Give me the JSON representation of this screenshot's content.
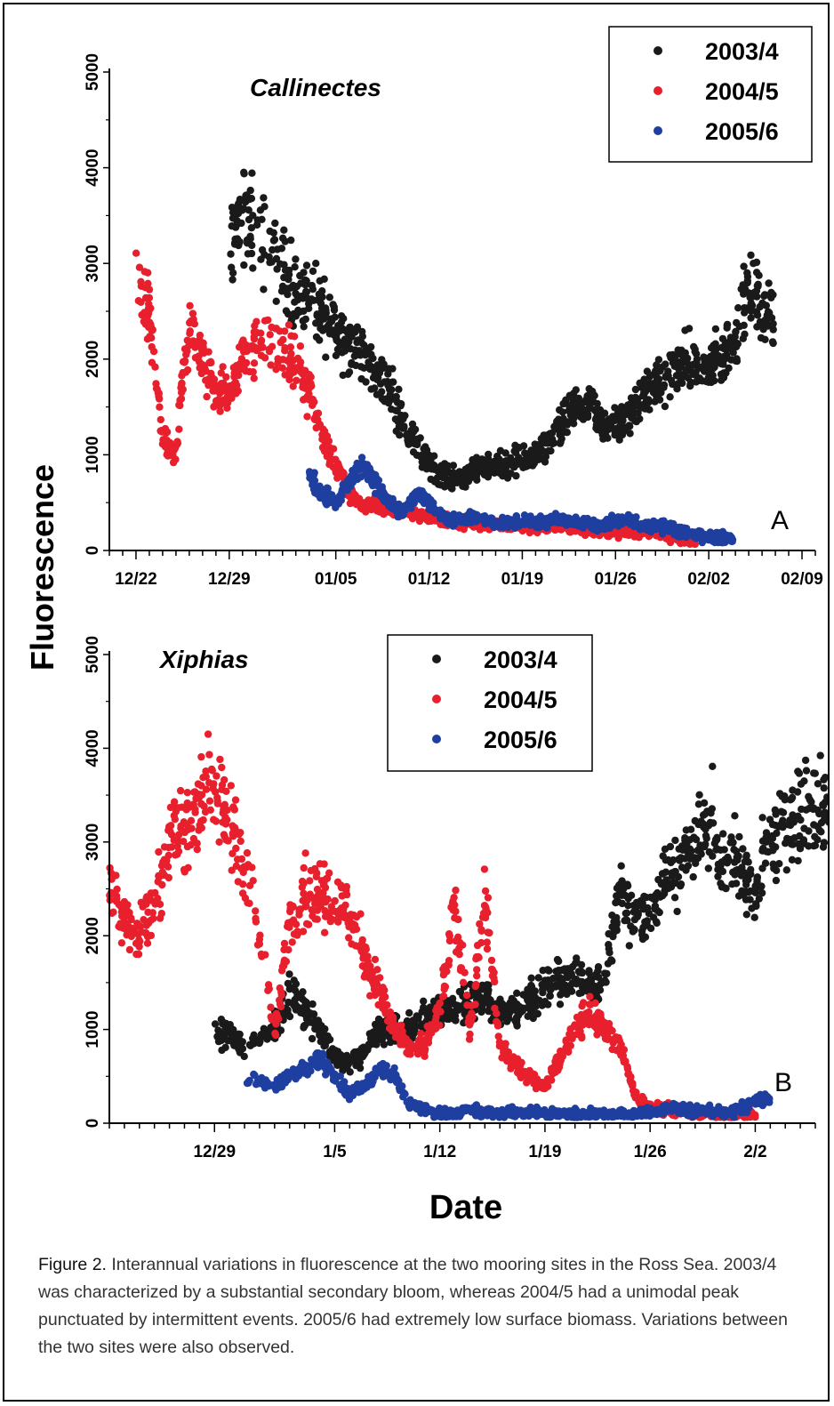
{
  "y_axis_label": "Fluorescence",
  "x_axis_label": "Date",
  "caption": {
    "label": "Figure 2.",
    "text": "  Interannual variations in fluorescence at the two mooring sites in the Ross Sea.  2003/4 was characterized by a substantial secondary bloom, whereas 2004/5 had a unimodal peak punctuated by intermittent events.  2005/6 had extremely low surface biomass. Variations between the two sites were also observed."
  },
  "colors": {
    "2003/4": "#1a1a1a",
    "2004/5": "#e8202e",
    "2005/6": "#1f3fa0"
  },
  "chart_data": [
    {
      "type": "scatter",
      "title": "Callinectes",
      "panel": "A",
      "xlabel": "Date",
      "ylabel": "Fluorescence",
      "ylim": [
        0,
        5000
      ],
      "yticks": [
        0,
        1000,
        2000,
        3000,
        4000,
        5000
      ],
      "xlim": [
        "12/20",
        "02/11"
      ],
      "xticks": [
        "12/22",
        "12/29",
        "01/05",
        "01/12",
        "01/19",
        "01/26",
        "02/02",
        "02/09"
      ],
      "legend": "top-right",
      "series": [
        {
          "name": "2003/4",
          "x": [
            "12/29",
            "12/30",
            "12/31",
            "01/01",
            "01/02",
            "01/03",
            "01/04",
            "01/05",
            "01/06",
            "01/07",
            "01/08",
            "01/09",
            "01/10",
            "01/11",
            "01/12",
            "01/13",
            "01/14",
            "01/15",
            "01/16",
            "01/17",
            "01/18",
            "01/19",
            "01/20",
            "01/21",
            "01/22",
            "01/23",
            "01/24",
            "01/25",
            "01/26",
            "01/27",
            "01/28",
            "01/29",
            "01/30",
            "01/31",
            "02/01",
            "02/02",
            "02/03",
            "02/04",
            "02/05",
            "02/06"
          ],
          "y": [
            3000,
            3600,
            3300,
            3000,
            2700,
            2600,
            2500,
            2300,
            2200,
            2000,
            1900,
            1700,
            1400,
            1100,
            900,
            800,
            750,
            800,
            850,
            900,
            900,
            950,
            1000,
            1100,
            1300,
            1500,
            1500,
            1300,
            1300,
            1400,
            1600,
            1700,
            1800,
            2000,
            1900,
            1900,
            2000,
            2300,
            2700,
            2500
          ]
        },
        {
          "name": "2004/5",
          "x": [
            "12/22",
            "12/23",
            "12/24",
            "12/25",
            "12/26",
            "12/27",
            "12/28",
            "12/29",
            "12/30",
            "12/31",
            "01/01",
            "01/02",
            "01/03",
            "01/04",
            "01/05",
            "01/06",
            "01/07",
            "01/08",
            "01/09",
            "01/10",
            "01/11",
            "01/12",
            "01/13",
            "01/14",
            "01/15",
            "01/16",
            "01/17",
            "01/18",
            "01/19",
            "01/20",
            "01/21",
            "01/22",
            "01/23",
            "01/24",
            "01/25",
            "01/26",
            "01/27",
            "01/28",
            "01/29",
            "01/30",
            "01/31"
          ],
          "y": [
            3000,
            2500,
            1200,
            1000,
            2400,
            2000,
            1600,
            1700,
            2000,
            2200,
            2100,
            1900,
            1700,
            1200,
            900,
            600,
            450,
            500,
            420,
            400,
            380,
            350,
            320,
            300,
            300,
            280,
            280,
            270,
            260,
            250,
            250,
            240,
            230,
            220,
            210,
            200,
            200,
            190,
            180,
            160,
            120
          ]
        },
        {
          "name": "2005/6",
          "x": [
            "01/03",
            "01/04",
            "01/05",
            "01/06",
            "01/07",
            "01/08",
            "01/09",
            "01/10",
            "01/11",
            "01/12",
            "01/13",
            "01/14",
            "01/15",
            "01/16",
            "01/17",
            "01/18",
            "01/19",
            "01/20",
            "01/21",
            "01/22",
            "01/23",
            "01/24",
            "01/25",
            "01/26",
            "01/27",
            "01/28",
            "01/29",
            "01/30",
            "01/31",
            "02/01",
            "02/02",
            "02/03"
          ],
          "y": [
            800,
            600,
            500,
            700,
            900,
            700,
            500,
            400,
            600,
            500,
            350,
            300,
            350,
            320,
            280,
            300,
            320,
            280,
            300,
            320,
            300,
            280,
            260,
            300,
            320,
            250,
            260,
            240,
            200,
            150,
            150,
            120
          ]
        }
      ]
    },
    {
      "type": "scatter",
      "title": "Xiphias",
      "panel": "B",
      "xlabel": "Date",
      "ylabel": "Fluorescence",
      "ylim": [
        0,
        5000
      ],
      "yticks": [
        0,
        1000,
        2000,
        3000,
        4000,
        5000
      ],
      "xlim": [
        "12/22",
        "2/7"
      ],
      "xticks": [
        "12/29",
        "1/5",
        "1/12",
        "1/19",
        "1/26",
        "2/2"
      ],
      "legend": "top-center",
      "series": [
        {
          "name": "2003/4",
          "x": [
            "12/29",
            "12/30",
            "12/31",
            "1/1",
            "1/2",
            "1/3",
            "1/4",
            "1/5",
            "1/6",
            "1/7",
            "1/8",
            "1/9",
            "1/10",
            "1/11",
            "1/12",
            "1/13",
            "1/14",
            "1/15",
            "1/16",
            "1/17",
            "1/18",
            "1/19",
            "1/20",
            "1/21",
            "1/22",
            "1/23",
            "1/24",
            "1/25",
            "1/26",
            "1/27",
            "1/28",
            "1/29",
            "1/30",
            "1/31",
            "2/1",
            "2/2",
            "2/3",
            "2/4",
            "2/5",
            "2/6"
          ],
          "y": [
            900,
            1000,
            800,
            1000,
            1400,
            1200,
            1000,
            700,
            600,
            800,
            1000,
            1000,
            1000,
            1100,
            1200,
            1200,
            1300,
            1300,
            1200,
            1200,
            1300,
            1400,
            1500,
            1600,
            1500,
            1500,
            2500,
            2200,
            2300,
            2600,
            2700,
            3000,
            3200,
            2800,
            2800,
            2400,
            3000,
            3200,
            3300,
            3400
          ]
        },
        {
          "name": "2004/5",
          "x": [
            "12/22",
            "12/23",
            "12/24",
            "12/25",
            "12/26",
            "12/27",
            "12/28",
            "12/29",
            "12/30",
            "12/31",
            "1/1",
            "1/2",
            "1/3",
            "1/4",
            "1/5",
            "1/6",
            "1/7",
            "1/8",
            "1/9",
            "1/10",
            "1/11",
            "1/12",
            "1/13",
            "1/14",
            "1/15",
            "1/16",
            "1/17",
            "1/18",
            "1/19",
            "1/20",
            "1/21",
            "1/22",
            "1/23",
            "1/24",
            "1/25",
            "1/26",
            "1/27",
            "1/28",
            "1/29",
            "1/30",
            "1/31",
            "2/1"
          ],
          "y": [
            2500,
            2200,
            2000,
            2400,
            3000,
            3200,
            3400,
            3600,
            3200,
            2800,
            1000,
            2200,
            2400,
            2500,
            2400,
            2200,
            1800,
            1400,
            1000,
            800,
            800,
            1200,
            2300,
            1000,
            2400,
            800,
            600,
            500,
            400,
            700,
            1000,
            1200,
            1000,
            800,
            300,
            150,
            150,
            150,
            100,
            80,
            70,
            80
          ]
        },
        {
          "name": "2005/6",
          "x": [
            "12/31",
            "1/1",
            "1/2",
            "1/3",
            "1/4",
            "1/5",
            "1/6",
            "1/7",
            "1/8",
            "1/9",
            "1/10",
            "1/11",
            "1/12",
            "1/13",
            "1/14",
            "1/15",
            "1/16",
            "1/17",
            "1/18",
            "1/19",
            "1/20",
            "1/21",
            "1/22",
            "1/23",
            "1/24",
            "1/25",
            "1/26",
            "1/27",
            "1/28",
            "1/29",
            "1/30",
            "1/31",
            "2/1",
            "2/2"
          ],
          "y": [
            500,
            400,
            500,
            600,
            700,
            500,
            300,
            400,
            600,
            500,
            200,
            150,
            100,
            100,
            150,
            100,
            100,
            120,
            100,
            100,
            90,
            80,
            80,
            70,
            80,
            90,
            100,
            150,
            150,
            130,
            120,
            100,
            150,
            250
          ]
        }
      ]
    }
  ]
}
